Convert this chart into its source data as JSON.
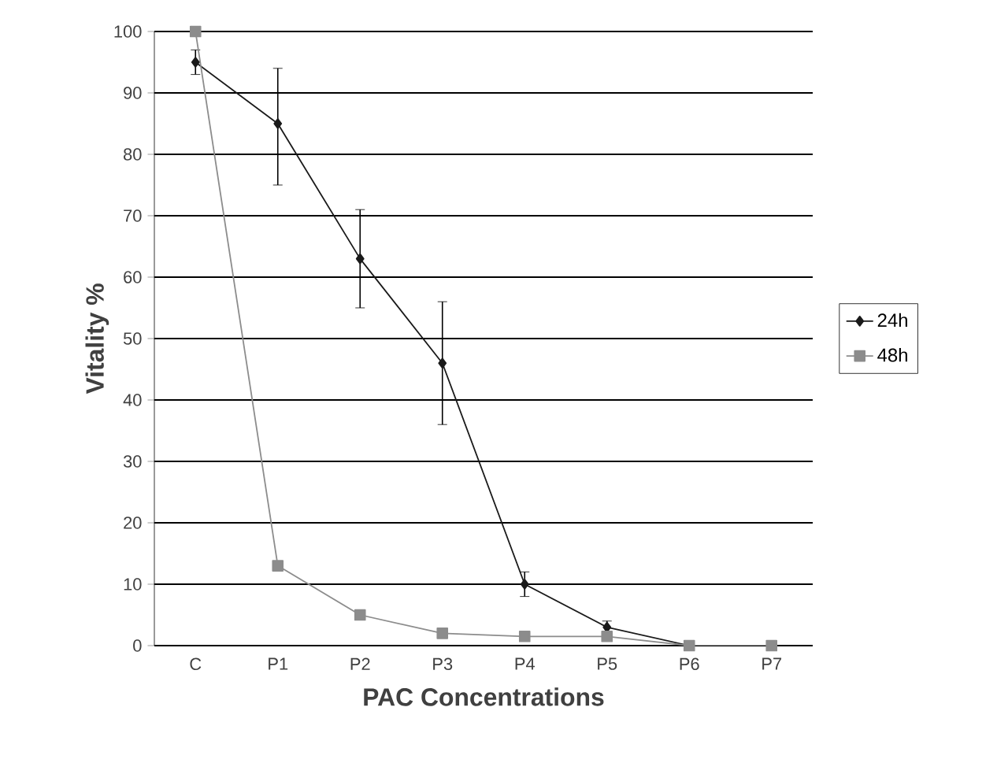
{
  "chart_data": {
    "type": "line",
    "xlabel": "PAC Concentrations",
    "ylabel": "Vitality %",
    "categories": [
      "C",
      "P1",
      "P2",
      "P3",
      "P4",
      "P5",
      "P6",
      "P7"
    ],
    "series": [
      {
        "name": "24h",
        "color": "#1a1a1a",
        "marker": "diamond",
        "values": [
          95,
          85,
          63,
          46,
          10,
          3,
          0,
          null
        ],
        "errors": [
          [
            93,
            97
          ],
          [
            75,
            94
          ],
          [
            55,
            71
          ],
          [
            36,
            56
          ],
          [
            8,
            12
          ],
          [
            2,
            4
          ],
          null,
          null
        ]
      },
      {
        "name": "48h",
        "color": "#8c8c8c",
        "marker": "square",
        "values": [
          100,
          13,
          5,
          2,
          1.5,
          1.5,
          0,
          0
        ]
      }
    ],
    "ylim": [
      0,
      100
    ],
    "yticks": [
      0,
      10,
      20,
      30,
      40,
      50,
      60,
      70,
      80,
      90,
      100
    ],
    "grid": "y",
    "legend": "right"
  }
}
